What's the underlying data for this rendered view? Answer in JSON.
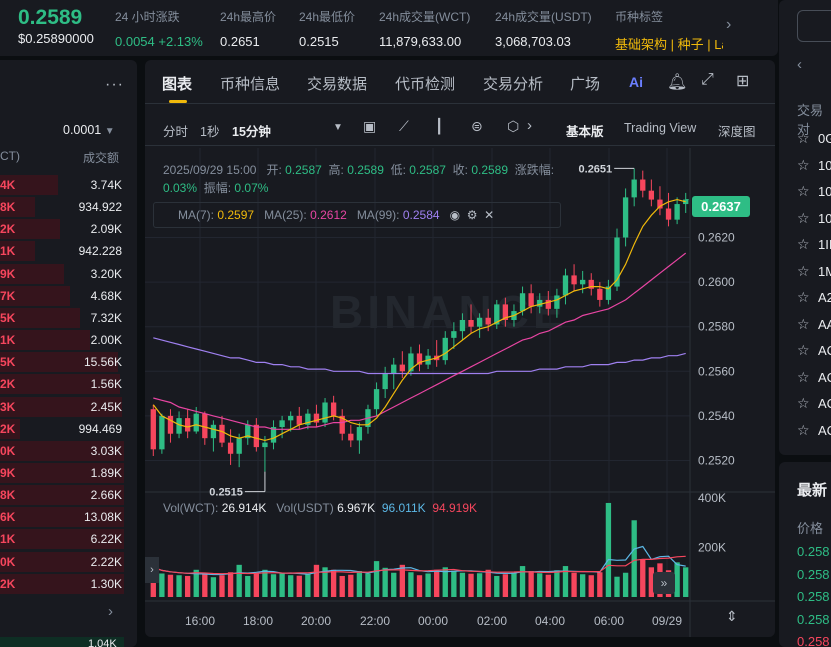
{
  "header": {
    "price": "0.2589",
    "price_usd": "$0.25890000",
    "stats": [
      {
        "label": "24 小时涨跌",
        "value": "0.0054 +2.13%",
        "color": "green"
      },
      {
        "label": "24h最高价",
        "value": "0.2651",
        "color": ""
      },
      {
        "label": "24h最低价",
        "value": "0.2515",
        "color": ""
      },
      {
        "label": "24h成交量(WCT)",
        "value": "11,879,633.00",
        "color": ""
      },
      {
        "label": "24h成交量(USDT)",
        "value": "3,068,703.03",
        "color": ""
      },
      {
        "label": "币种标签",
        "value": "基础架构 | 种子 | La",
        "color": "gold"
      }
    ]
  },
  "orderbook": {
    "precision": "0.0001",
    "col_left": "CT)",
    "col_right": "成交额",
    "rows": [
      {
        "a": "4K",
        "b": "3.74K",
        "w": 58
      },
      {
        "a": "8K",
        "b": "934.922",
        "w": 35
      },
      {
        "a": "2K",
        "b": "2.09K",
        "w": 60
      },
      {
        "a": "1K",
        "b": "942.228",
        "w": 35
      },
      {
        "a": "9K",
        "b": "3.20K",
        "w": 64
      },
      {
        "a": "7K",
        "b": "4.68K",
        "w": 70
      },
      {
        "a": "5K",
        "b": "7.32K",
        "w": 80
      },
      {
        "a": "1K",
        "b": "2.00K",
        "w": 90
      },
      {
        "a": "5K",
        "b": "15.56K",
        "w": 118
      },
      {
        "a": "2K",
        "b": "1.56K",
        "w": 120
      },
      {
        "a": "3K",
        "b": "2.45K",
        "w": 122
      },
      {
        "a": "2K",
        "b": "994.469",
        "w": 20
      },
      {
        "a": "0K",
        "b": "3.03K",
        "w": 124
      },
      {
        "a": "9K",
        "b": "1.89K",
        "w": 124
      },
      {
        "a": "8K",
        "b": "2.66K",
        "w": 124
      },
      {
        "a": "6K",
        "b": "13.08K",
        "w": 124
      },
      {
        "a": "1K",
        "b": "6.22K",
        "w": 124
      },
      {
        "a": "0K",
        "b": "2.22K",
        "w": 124
      },
      {
        "a": "2K",
        "b": "1.30K",
        "w": 124
      }
    ],
    "bottom_value": "1.04K"
  },
  "tabs": [
    "图表",
    "币种信息",
    "交易数据",
    "代币检测",
    "交易分析",
    "广场"
  ],
  "toolbar": {
    "intervals": [
      "分时",
      "1秒",
      "15分钟"
    ],
    "views": [
      "基本版",
      "Trading View",
      "深度图"
    ]
  },
  "ohlc": {
    "date": "2025/09/29 15:00",
    "open_label": "开:",
    "open": "0.2587",
    "high_label": "高:",
    "high": "0.2589",
    "low_label": "低:",
    "low": "0.2587",
    "close_label": "收:",
    "close": "0.2589",
    "change_label": "涨跌幅:",
    "change": "0.03%",
    "amp_label": "振幅:",
    "amp": "0.07%"
  },
  "ma": {
    "ma7_label": "MA(7):",
    "ma7": "0.2597",
    "ma25_label": "MA(25):",
    "ma25": "0.2612",
    "ma99_label": "MA(99):",
    "ma99": "0.2584"
  },
  "volume": {
    "vol_wct_label": "Vol(WCT):",
    "vol_wct": "26.914K",
    "vol_usdt_label": "Vol(USDT)",
    "vol_usdt": "6.967K",
    "ma1": "96.011K",
    "ma2": "94.919K"
  },
  "price_tag": "0.2637",
  "high_marker": "0.2651",
  "low_marker": "0.2515",
  "watermark": "BINANCE",
  "colors": {
    "up": "#2ebd85",
    "down": "#f6465d",
    "ma7": "#f0b90b",
    "ma25": "#e845a3",
    "ma99": "#9f80f0",
    "accent": "#f0b90b"
  },
  "chart_data": {
    "type": "candlestick",
    "price_axis": [
      "0.2620",
      "0.2600",
      "0.2580",
      "0.2560",
      "0.2540",
      "0.2520"
    ],
    "ylim": [
      0.2509,
      0.2657
    ],
    "volume_axis": [
      "400K",
      "200K"
    ],
    "volume_max": 400000,
    "time_axis": [
      "16:00",
      "18:00",
      "20:00",
      "22:00",
      "00:00",
      "02:00",
      "04:00",
      "06:00",
      "09/29"
    ],
    "candles": [
      [
        0.2543,
        0.2545,
        0.2522,
        0.2525
      ],
      [
        0.2525,
        0.2541,
        0.2523,
        0.254
      ],
      [
        0.254,
        0.2543,
        0.2528,
        0.2532
      ],
      [
        0.2532,
        0.2542,
        0.253,
        0.2539
      ],
      [
        0.2539,
        0.2543,
        0.253,
        0.2533
      ],
      [
        0.2533,
        0.2544,
        0.2532,
        0.2541
      ],
      [
        0.2541,
        0.2542,
        0.2527,
        0.253
      ],
      [
        0.253,
        0.2538,
        0.2524,
        0.2536
      ],
      [
        0.2536,
        0.254,
        0.2526,
        0.2528
      ],
      [
        0.2528,
        0.2534,
        0.2518,
        0.2523
      ],
      [
        0.2523,
        0.2532,
        0.2517,
        0.253
      ],
      [
        0.253,
        0.2538,
        0.2527,
        0.2536
      ],
      [
        0.2536,
        0.2539,
        0.2524,
        0.2526
      ],
      [
        0.2526,
        0.2531,
        0.2515,
        0.2528
      ],
      [
        0.2528,
        0.2538,
        0.2525,
        0.2535
      ],
      [
        0.2535,
        0.254,
        0.253,
        0.2538
      ],
      [
        0.2538,
        0.2542,
        0.2533,
        0.254
      ],
      [
        0.254,
        0.2544,
        0.2534,
        0.2536
      ],
      [
        0.2536,
        0.2543,
        0.2534,
        0.2541
      ],
      [
        0.2541,
        0.2545,
        0.2535,
        0.2537
      ],
      [
        0.2537,
        0.2548,
        0.2535,
        0.2546
      ],
      [
        0.2546,
        0.2549,
        0.2538,
        0.254
      ],
      [
        0.254,
        0.2543,
        0.2529,
        0.2532
      ],
      [
        0.2532,
        0.2536,
        0.2526,
        0.2529
      ],
      [
        0.2529,
        0.2537,
        0.2523,
        0.2535
      ],
      [
        0.2535,
        0.2545,
        0.2532,
        0.2543
      ],
      [
        0.2543,
        0.2555,
        0.254,
        0.2552
      ],
      [
        0.2552,
        0.2562,
        0.2548,
        0.2559
      ],
      [
        0.2559,
        0.2566,
        0.2552,
        0.2563
      ],
      [
        0.2563,
        0.2569,
        0.2557,
        0.256
      ],
      [
        0.256,
        0.2571,
        0.2558,
        0.2568
      ],
      [
        0.2568,
        0.2572,
        0.256,
        0.2563
      ],
      [
        0.2563,
        0.257,
        0.2561,
        0.2567
      ],
      [
        0.2567,
        0.2574,
        0.2562,
        0.2565
      ],
      [
        0.2565,
        0.2578,
        0.2563,
        0.2575
      ],
      [
        0.2575,
        0.2582,
        0.257,
        0.2578
      ],
      [
        0.2578,
        0.2586,
        0.2574,
        0.2583
      ],
      [
        0.2583,
        0.259,
        0.2577,
        0.258
      ],
      [
        0.258,
        0.2586,
        0.2575,
        0.2584
      ],
      [
        0.2584,
        0.2588,
        0.2578,
        0.2581
      ],
      [
        0.2581,
        0.2592,
        0.2579,
        0.259
      ],
      [
        0.259,
        0.2593,
        0.258,
        0.2583
      ],
      [
        0.2583,
        0.259,
        0.258,
        0.2587
      ],
      [
        0.2587,
        0.2598,
        0.2585,
        0.2595
      ],
      [
        0.2595,
        0.2599,
        0.2586,
        0.2589
      ],
      [
        0.2589,
        0.2595,
        0.2586,
        0.2592
      ],
      [
        0.2592,
        0.2596,
        0.2585,
        0.2588
      ],
      [
        0.2588,
        0.2597,
        0.2584,
        0.2594
      ],
      [
        0.2594,
        0.2606,
        0.259,
        0.2603
      ],
      [
        0.2603,
        0.2608,
        0.2596,
        0.2599
      ],
      [
        0.2599,
        0.2605,
        0.2595,
        0.2601
      ],
      [
        0.2601,
        0.2604,
        0.2594,
        0.2597
      ],
      [
        0.2597,
        0.26,
        0.2589,
        0.2592
      ],
      [
        0.2592,
        0.2601,
        0.259,
        0.2598
      ],
      [
        0.2598,
        0.2624,
        0.2596,
        0.262
      ],
      [
        0.262,
        0.2642,
        0.2616,
        0.2638
      ],
      [
        0.2638,
        0.2651,
        0.2634,
        0.2646
      ],
      [
        0.2646,
        0.265,
        0.2638,
        0.2641
      ],
      [
        0.2641,
        0.2646,
        0.2634,
        0.2637
      ],
      [
        0.2637,
        0.2643,
        0.263,
        0.2633
      ],
      [
        0.2633,
        0.264,
        0.2625,
        0.2628
      ],
      [
        0.2628,
        0.2638,
        0.2626,
        0.2635
      ],
      [
        0.2635,
        0.264,
        0.2631,
        0.2637
      ]
    ],
    "ma7": [
      0.2545,
      0.254,
      0.2538,
      0.2536,
      0.2535,
      0.2536,
      0.2535,
      0.2534,
      0.2533,
      0.2531,
      0.253,
      0.2531,
      0.253,
      0.2529,
      0.253,
      0.2532,
      0.2534,
      0.2536,
      0.2537,
      0.2538,
      0.2539,
      0.254,
      0.2539,
      0.2537,
      0.2536,
      0.2536,
      0.2539,
      0.2544,
      0.255,
      0.2556,
      0.2561,
      0.2564,
      0.2565,
      0.2566,
      0.2568,
      0.2571,
      0.2574,
      0.2577,
      0.2579,
      0.258,
      0.2582,
      0.2584,
      0.2585,
      0.2587,
      0.2589,
      0.259,
      0.2591,
      0.2592,
      0.2594,
      0.2596,
      0.2597,
      0.2598,
      0.2598,
      0.2597,
      0.2601,
      0.2608,
      0.2617,
      0.2625,
      0.263,
      0.2634,
      0.2636,
      0.2637,
      0.2636
    ],
    "ma25": [
      0.2548,
      0.2547,
      0.2546,
      0.2544,
      0.2543,
      0.2542,
      0.2541,
      0.254,
      0.2539,
      0.2538,
      0.2537,
      0.2536,
      0.2535,
      0.2535,
      0.2534,
      0.2534,
      0.2534,
      0.2534,
      0.2535,
      0.2535,
      0.2536,
      0.2537,
      0.2537,
      0.2538,
      0.2538,
      0.2539,
      0.254,
      0.2542,
      0.2544,
      0.2546,
      0.2548,
      0.255,
      0.2552,
      0.2554,
      0.2556,
      0.2558,
      0.256,
      0.2562,
      0.2564,
      0.2566,
      0.2568,
      0.257,
      0.2572,
      0.2574,
      0.2575,
      0.2577,
      0.2578,
      0.258,
      0.2582,
      0.2583,
      0.2585,
      0.2586,
      0.2587,
      0.2588,
      0.259,
      0.2592,
      0.2595,
      0.2598,
      0.2601,
      0.2604,
      0.2607,
      0.261,
      0.2613
    ],
    "ma99": [
      0.2575,
      0.2574,
      0.2573,
      0.2572,
      0.2571,
      0.257,
      0.2569,
      0.2568,
      0.2567,
      0.2566,
      0.2566,
      0.2565,
      0.2564,
      0.2564,
      0.2563,
      0.2563,
      0.2562,
      0.2562,
      0.2561,
      0.2561,
      0.2561,
      0.256,
      0.256,
      0.256,
      0.256,
      0.2559,
      0.2559,
      0.2559,
      0.2559,
      0.2559,
      0.2559,
      0.2559,
      0.2559,
      0.2559,
      0.2559,
      0.2559,
      0.2559,
      0.2559,
      0.2559,
      0.2559,
      0.256,
      0.256,
      0.256,
      0.256,
      0.256,
      0.2561,
      0.2561,
      0.2561,
      0.2562,
      0.2562,
      0.2562,
      0.2563,
      0.2563,
      0.2563,
      0.2564,
      0.2564,
      0.2565,
      0.2565,
      0.2566,
      0.2566,
      0.2567,
      0.2567,
      0.2568
    ],
    "volumes": [
      120000,
      95000,
      90000,
      88000,
      85000,
      110000,
      92000,
      80000,
      88000,
      100000,
      130000,
      85000,
      96000,
      110000,
      92000,
      98000,
      88000,
      86000,
      94000,
      130000,
      120000,
      110000,
      85000,
      90000,
      105000,
      95000,
      145000,
      118000,
      98000,
      130000,
      100000,
      88000,
      95000,
      110000,
      120000,
      106000,
      98000,
      94000,
      96000,
      110000,
      85000,
      92000,
      98000,
      125000,
      105000,
      96000,
      90000,
      108000,
      125000,
      98000,
      92000,
      88000,
      100000,
      380000,
      82000,
      98000,
      310000,
      150000,
      120000,
      136000,
      108000,
      140000,
      120000
    ]
  },
  "right_panel": {
    "items": [
      "0G",
      "10",
      "10",
      "10",
      "1II",
      "1M",
      "A2",
      "AA",
      "AC",
      "AC",
      "AC",
      "AC"
    ],
    "section_label": "交易对",
    "latest_title": "最新",
    "price_label": "价格",
    "latest_prices": [
      {
        "v": "0.258",
        "c": "green"
      },
      {
        "v": "0.258",
        "c": "green"
      },
      {
        "v": "0.258",
        "c": "green"
      },
      {
        "v": "0.258",
        "c": "green"
      },
      {
        "v": "0.258",
        "c": "red"
      }
    ]
  }
}
